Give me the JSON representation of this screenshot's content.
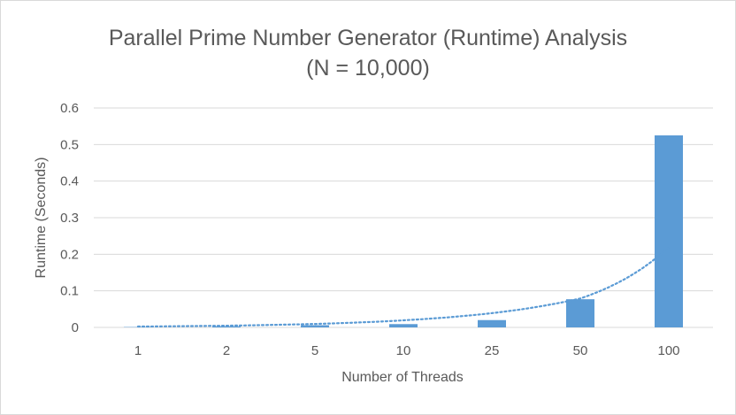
{
  "chart_data": {
    "type": "bar",
    "title_line1": "Parallel Prime Number Generator (Runtime) Analysis",
    "title_line2": "(N = 10,000)",
    "xlabel": "Number of Threads",
    "ylabel": "Runtime (Seconds)",
    "categories": [
      "1",
      "2",
      "5",
      "10",
      "25",
      "50",
      "100"
    ],
    "values": [
      0.001,
      0.003,
      0.006,
      0.009,
      0.02,
      0.077,
      0.525
    ],
    "ylim": [
      0,
      0.6
    ],
    "yticks": [
      "0",
      "0.1",
      "0.2",
      "0.3",
      "0.4",
      "0.5",
      "0.6"
    ],
    "grid": true,
    "legend": "none",
    "trendline": {
      "type": "exponential",
      "style": "dotted",
      "values": [
        0.0023,
        0.0047,
        0.0095,
        0.0193,
        0.039,
        0.0792,
        0.219
      ]
    },
    "colors": {
      "bar": "#5b9bd5",
      "trendline": "#5b9bd5",
      "grid": "#d9d9d9",
      "text": "#595959"
    }
  }
}
